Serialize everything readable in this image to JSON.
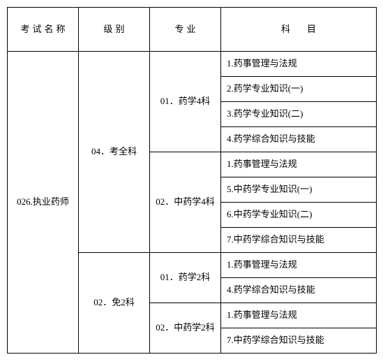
{
  "header": {
    "exam_name": "考试名称",
    "level": "级别",
    "major": "专业",
    "subject": "科目"
  },
  "exam": "026.执业药师",
  "levels": {
    "full": "04．考全科",
    "exempt": "02．免2科"
  },
  "majors": {
    "pharm4": "01．药学4科",
    "cn_pharm4": "02．中药学4科",
    "pharm2": "01．药学2科",
    "cn_pharm2": "02．中药学2科"
  },
  "subjects": {
    "s1": "1.药事管理与法规",
    "s2": "2.药学专业知识(一)",
    "s3": "3.药学专业知识(二)",
    "s4": "4.药学综合知识与技能",
    "s5": "1.药事管理与法规",
    "s6": "5.中药学专业知识(一)",
    "s7": "6.中药学专业知识(二)",
    "s8": "7.中药学综合知识与技能",
    "s9": "1.药事管理与法规",
    "s10": "4.药学综合知识与技能",
    "s11": "1.药事管理与法规",
    "s12": "7.中药学综合知识与技能"
  }
}
